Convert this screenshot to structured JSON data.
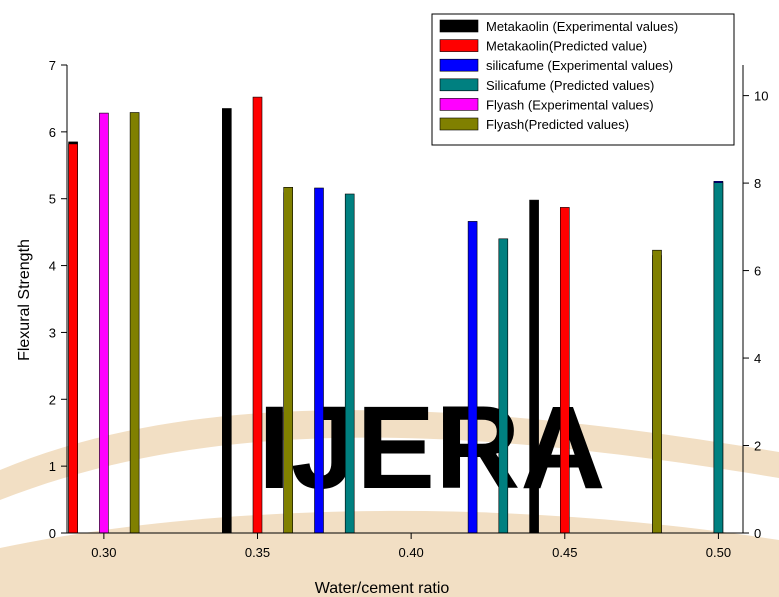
{
  "watermark": {
    "text": "IJERA"
  },
  "colors": {
    "metakaolin_experimental": "#000000",
    "metakaolin_predicted": "#ff0000",
    "silicafume_experimental": "#0000ff",
    "silicafume_predicted": "#008080",
    "flyash_experimental": "#ff00ff",
    "flyash_predicted": "#808000",
    "watermark_fill": "#f2dfc4",
    "watermark_text": "#e4e4e8"
  },
  "chart_data": {
    "type": "bar",
    "title": "",
    "xlabel": "Water/cement ratio",
    "ylabel": "Flexural Strength",
    "xlim": [
      0.288,
      0.508
    ],
    "ylim": [
      0,
      7
    ],
    "y2lim": [
      0,
      10.7
    ],
    "x_ticks": [
      0.3,
      0.35,
      0.4,
      0.45,
      0.5
    ],
    "x_tick_labels": [
      "0.30",
      "0.35",
      "0.40",
      "0.45",
      "0.50"
    ],
    "y_ticks": [
      0,
      1,
      2,
      3,
      4,
      5,
      6,
      7
    ],
    "y_tick_labels": [
      "0",
      "1",
      "2",
      "3",
      "4",
      "5",
      "6",
      "7"
    ],
    "y2_ticks": [
      0,
      2,
      4,
      6,
      8,
      10
    ],
    "y2_tick_labels": [
      "0",
      "2",
      "4",
      "6",
      "8",
      "10"
    ],
    "grid": false,
    "legend_position": "top-right",
    "series": [
      {
        "name": "Metakaolin (Experimental values)",
        "color_key": "metakaolin_experimental",
        "points": [
          [
            0.29,
            5.85
          ],
          [
            0.34,
            6.35
          ],
          [
            0.44,
            4.98
          ]
        ]
      },
      {
        "name": "Metakaolin(Predicted value)",
        "color_key": "metakaolin_predicted",
        "points": [
          [
            0.29,
            5.82
          ],
          [
            0.35,
            6.52
          ],
          [
            0.45,
            4.87
          ]
        ]
      },
      {
        "name": "silicafume (Experimental values)",
        "color_key": "silicafume_experimental",
        "points": [
          [
            0.37,
            5.16
          ],
          [
            0.42,
            4.66
          ],
          [
            0.5,
            5.26
          ]
        ]
      },
      {
        "name": "Silicafume (Predicted values)",
        "color_key": "silicafume_predicted",
        "points": [
          [
            0.38,
            5.07
          ],
          [
            0.43,
            4.4
          ],
          [
            0.5,
            5.24
          ]
        ]
      },
      {
        "name": "Flyash (Experimental values)",
        "color_key": "flyash_experimental",
        "points": [
          [
            0.3,
            6.28
          ],
          [
            0.36,
            5.09
          ],
          [
            0.48,
            4.15
          ]
        ]
      },
      {
        "name": "Flyash(Predicted values)",
        "color_key": "flyash_predicted",
        "points": [
          [
            0.31,
            6.29
          ],
          [
            0.36,
            5.17
          ],
          [
            0.48,
            4.23
          ]
        ]
      }
    ]
  }
}
